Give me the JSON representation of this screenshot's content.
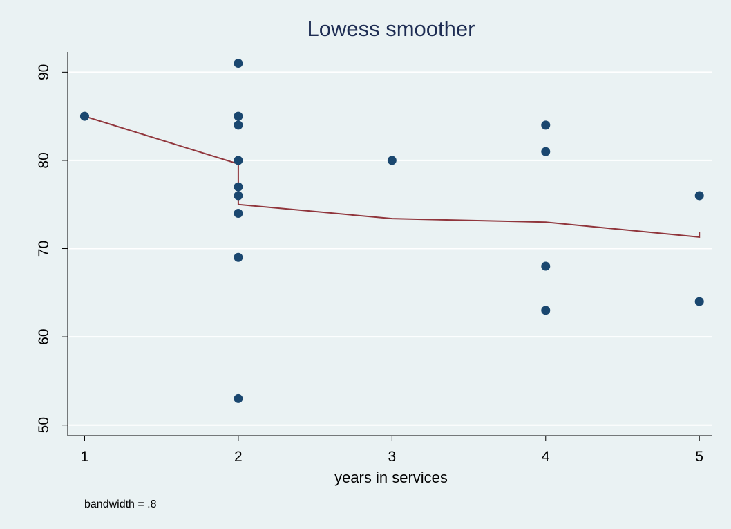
{
  "chart_data": {
    "type": "scatter",
    "title": "Lowess smoother",
    "x_label": "years in services",
    "note": "bandwidth = .8",
    "points": {
      "color": "#1a476f",
      "x": [
        1,
        2,
        2,
        2,
        2,
        2,
        2,
        2,
        2,
        2,
        3,
        4,
        4,
        4,
        4,
        5,
        5
      ],
      "y": [
        85,
        91,
        85,
        84,
        80,
        77,
        76,
        74,
        69,
        53,
        80,
        84,
        81,
        68,
        63,
        76,
        64
      ]
    },
    "smoother": {
      "color": "#90353b",
      "x": [
        1,
        2,
        2,
        3,
        4,
        5,
        5
      ],
      "y": [
        85,
        79.6,
        75.0,
        73.4,
        73.0,
        71.3,
        71.9
      ]
    },
    "xlim": [
      0.89,
      5.08
    ],
    "ylim": [
      48.8,
      92.3
    ],
    "xticks": [
      1,
      2,
      3,
      4,
      5
    ],
    "yticks": [
      50,
      60,
      70,
      80,
      90
    ],
    "grid": true,
    "background": "#eaf2f3"
  }
}
